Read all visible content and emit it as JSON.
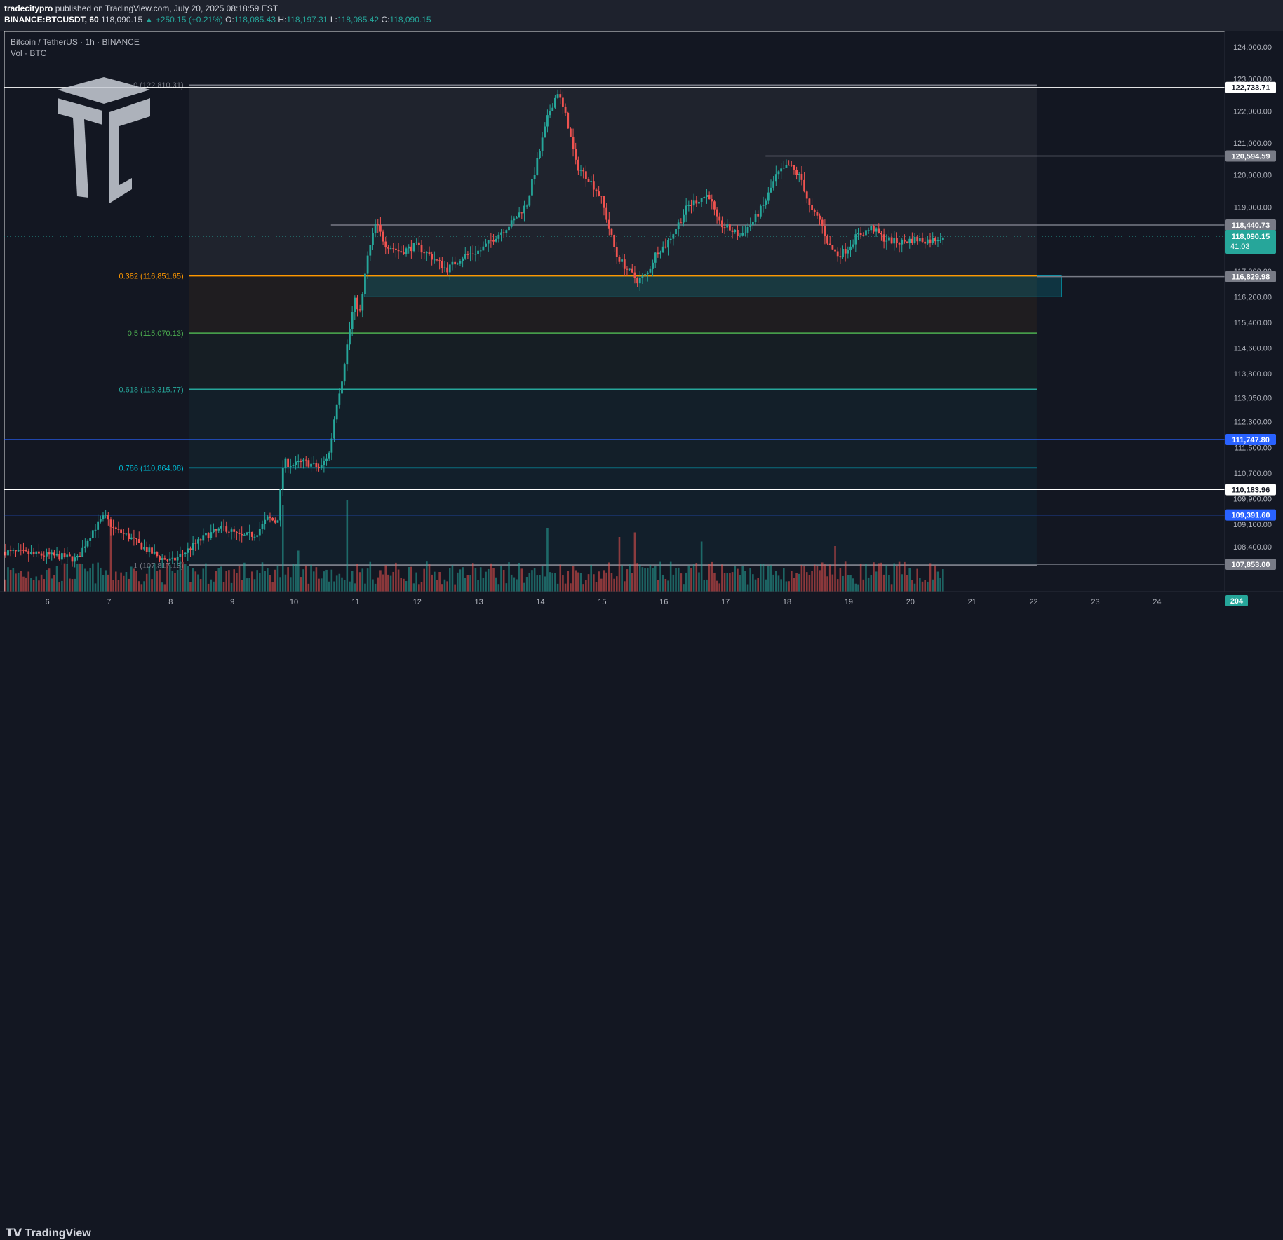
{
  "header": {
    "author": "tradecitypro",
    "published_text": "published on TradingView.com, July 20, 2025 08:18:59 EST",
    "symbol": "BINANCE:BTCUSDT, 60",
    "last": "118,090.15",
    "change": "▲ +250.15 (+0.21%)",
    "o_label": "O:",
    "o_value": "118,085.43",
    "h_label": "H:",
    "h_value": "118,197.31",
    "l_label": "L:",
    "l_value": "118,085.42",
    "c_label": "C:",
    "c_value": "118,090.15"
  },
  "legend": {
    "title": "Bitcoin / TetherUS · 1h · BINANCE",
    "volume": "Vol · BTC"
  },
  "footer": {
    "brand": "TradingView"
  },
  "colors": {
    "background": "#131722",
    "up": "#26a69a",
    "down": "#ef5350",
    "fib_0382": "#ff9800",
    "fib_05": "#4caf50",
    "fib_0618": "#26a69a",
    "fib_0786": "#00bcd4",
    "zone": "#00bcd4",
    "level_blue": "#2962ff",
    "level_white": "#ffffff"
  },
  "chart_data": {
    "type": "candlestick",
    "title": "Bitcoin / TetherUS · 1h · BINANCE",
    "ylim": [
      107000,
      124500
    ],
    "xlim": [
      5.3,
      25.1
    ],
    "x_ticks": [
      "6",
      "7",
      "8",
      "9",
      "10",
      "11",
      "12",
      "13",
      "14",
      "15",
      "16",
      "17",
      "18",
      "19",
      "20",
      "21",
      "22",
      "23",
      "24"
    ],
    "y_ticks": [
      {
        "value": 124000,
        "label": "124,000.00"
      },
      {
        "value": 123000,
        "label": "123,000.00"
      },
      {
        "value": 122000,
        "label": "122,000.00"
      },
      {
        "value": 121000,
        "label": "121,000.00"
      },
      {
        "value": 120000,
        "label": "120,000.00"
      },
      {
        "value": 119000,
        "label": "119,000.00"
      },
      {
        "value": 117000,
        "label": "117,000.00"
      },
      {
        "value": 116200,
        "label": "116,200.00"
      },
      {
        "value": 115400,
        "label": "115,400.00"
      },
      {
        "value": 114600,
        "label": "114,600.00"
      },
      {
        "value": 113800,
        "label": "113,800.00"
      },
      {
        "value": 113050,
        "label": "113,050.00"
      },
      {
        "value": 112300,
        "label": "112,300.00"
      },
      {
        "value": 111500,
        "label": "111,500.00"
      },
      {
        "value": 110700,
        "label": "110,700.00"
      },
      {
        "value": 109900,
        "label": "109,900.00"
      },
      {
        "value": 109100,
        "label": "109,100.00"
      },
      {
        "value": 108400,
        "label": "108,400.00"
      }
    ],
    "price_badges": [
      {
        "value": 122733.71,
        "label": "122,733.71",
        "style": "white"
      },
      {
        "value": 120594.59,
        "label": "120,594.59",
        "style": "gray"
      },
      {
        "value": 118440.73,
        "label": "118,440.73",
        "style": "gray"
      },
      {
        "value": 116829.98,
        "label": "116,829.98",
        "style": "gray"
      },
      {
        "value": 111747.8,
        "label": "111,747.80",
        "style": "blue"
      },
      {
        "value": 110183.96,
        "label": "110,183.96",
        "style": "white"
      },
      {
        "value": 109391.6,
        "label": "109,391.60",
        "style": "blue"
      },
      {
        "value": 107853.0,
        "label": "107,853.00",
        "style": "gray"
      }
    ],
    "current_price": {
      "value": 118090.15,
      "label": "118,090.15",
      "countdown": "41:03"
    },
    "volume_badge": "204",
    "horizontal_levels": [
      {
        "value": 122733.71,
        "x_from": 5.3,
        "x_to": 25.1,
        "color": "#ffffff"
      },
      {
        "value": 120594.59,
        "x_from": 17.65,
        "x_to": 25.1,
        "color": "#787b86"
      },
      {
        "value": 118440.73,
        "x_from": 10.6,
        "x_to": 25.1,
        "color": "#787b86"
      },
      {
        "value": 116829.98,
        "x_from": 22.05,
        "x_to": 25.1,
        "color": "#787b86"
      },
      {
        "value": 111747.8,
        "x_from": 5.3,
        "x_to": 25.1,
        "color": "#2962ff"
      },
      {
        "value": 110183.96,
        "x_from": 5.3,
        "x_to": 25.1,
        "color": "#ffffff"
      },
      {
        "value": 109391.6,
        "x_from": 5.3,
        "x_to": 25.1,
        "color": "#2962ff"
      },
      {
        "value": 107853.0,
        "x_from": 8.3,
        "x_to": 25.1,
        "color": "#787b86"
      }
    ],
    "fib": {
      "x_from": 8.3,
      "x_to": 22.05,
      "levels": [
        {
          "ratio": "0",
          "price": 122810.31,
          "label": "0 (122,810.31)",
          "color": "#787b86"
        },
        {
          "ratio": "0.382",
          "price": 116851.65,
          "label": "0.382 (116,851.65)",
          "color": "#ff9800"
        },
        {
          "ratio": "0.5",
          "price": 115070.13,
          "label": "0.5 (115,070.13)",
          "color": "#4caf50"
        },
        {
          "ratio": "0.618",
          "price": 113315.77,
          "label": "0.618 (113,315.77)",
          "color": "#26a69a"
        },
        {
          "ratio": "0.786",
          "price": 110864.08,
          "label": "0.786 (110,864.08)",
          "color": "#00bcd4"
        },
        {
          "ratio": "1",
          "price": 107817.13,
          "label": "1 (107,817.13)",
          "color": "#787b86"
        }
      ]
    },
    "zone": {
      "x_from": 11.15,
      "x_to": 22.45,
      "top": 116850,
      "bottom": 116200
    },
    "price_path": [
      [
        5.3,
        108250
      ],
      [
        5.9,
        108150
      ],
      [
        6.3,
        108080
      ],
      [
        6.5,
        108000
      ],
      [
        6.75,
        108900
      ],
      [
        6.95,
        109350
      ],
      [
        7.1,
        108950
      ],
      [
        7.35,
        108700
      ],
      [
        7.6,
        108350
      ],
      [
        7.85,
        108050
      ],
      [
        8.05,
        107950
      ],
      [
        8.3,
        108300
      ],
      [
        8.6,
        108750
      ],
      [
        8.9,
        109000
      ],
      [
        9.15,
        108700
      ],
      [
        9.4,
        108800
      ],
      [
        9.6,
        109300
      ],
      [
        9.75,
        109150
      ],
      [
        9.85,
        111050
      ],
      [
        10.0,
        110950
      ],
      [
        10.2,
        111050
      ],
      [
        10.45,
        110850
      ],
      [
        10.6,
        111350
      ],
      [
        10.7,
        112750
      ],
      [
        10.8,
        113650
      ],
      [
        10.9,
        114900
      ],
      [
        11.0,
        116100
      ],
      [
        11.1,
        115700
      ],
      [
        11.2,
        117300
      ],
      [
        11.35,
        118500
      ],
      [
        11.5,
        117850
      ],
      [
        11.75,
        117600
      ],
      [
        12.0,
        117800
      ],
      [
        12.25,
        117450
      ],
      [
        12.5,
        117050
      ],
      [
        12.75,
        117450
      ],
      [
        13.05,
        117650
      ],
      [
        13.3,
        118100
      ],
      [
        13.55,
        118500
      ],
      [
        13.8,
        119100
      ],
      [
        14.0,
        120700
      ],
      [
        14.15,
        121900
      ],
      [
        14.3,
        122600
      ],
      [
        14.45,
        121700
      ],
      [
        14.6,
        120300
      ],
      [
        14.8,
        119900
      ],
      [
        15.0,
        119300
      ],
      [
        15.1,
        118600
      ],
      [
        15.25,
        117500
      ],
      [
        15.45,
        117000
      ],
      [
        15.6,
        116700
      ],
      [
        15.75,
        116900
      ],
      [
        15.9,
        117600
      ],
      [
        16.05,
        117800
      ],
      [
        16.25,
        118450
      ],
      [
        16.4,
        119000
      ],
      [
        16.55,
        119200
      ],
      [
        16.75,
        119400
      ],
      [
        16.9,
        118500
      ],
      [
        17.1,
        118300
      ],
      [
        17.25,
        118100
      ],
      [
        17.45,
        118500
      ],
      [
        17.65,
        119100
      ],
      [
        17.85,
        120000
      ],
      [
        18.05,
        120300
      ],
      [
        18.25,
        119900
      ],
      [
        18.4,
        118900
      ],
      [
        18.55,
        118600
      ],
      [
        18.7,
        117800
      ],
      [
        18.85,
        117500
      ],
      [
        19.0,
        117700
      ],
      [
        19.15,
        118100
      ],
      [
        19.4,
        118350
      ],
      [
        19.6,
        118000
      ],
      [
        19.85,
        117900
      ],
      [
        20.1,
        118000
      ],
      [
        20.35,
        117950
      ],
      [
        20.55,
        118090
      ]
    ],
    "volume_spikes": [
      [
        7.0,
        0.75
      ],
      [
        9.8,
        0.95
      ],
      [
        10.05,
        0.45
      ],
      [
        10.85,
        1.0
      ],
      [
        14.1,
        0.7
      ],
      [
        15.25,
        0.6
      ],
      [
        15.5,
        0.65
      ],
      [
        16.6,
        0.55
      ],
      [
        18.75,
        0.5
      ],
      [
        20.55,
        0.2
      ]
    ]
  }
}
